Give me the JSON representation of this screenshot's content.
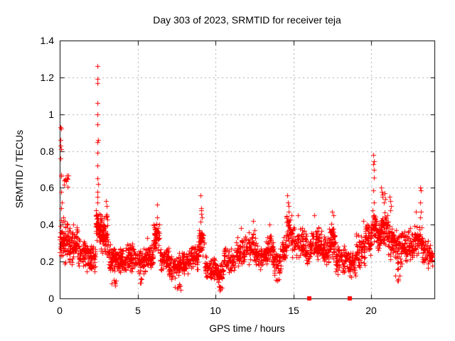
{
  "chart_data": {
    "type": "scatter",
    "title": "Day 303 of 2023, SRMTID for receiver teja",
    "xlabel": "GPS time / hours",
    "ylabel": "SRMTID / TECUs",
    "xlim": [
      0,
      24.05
    ],
    "ylim": [
      0,
      1.4
    ],
    "xticks": [
      0,
      5,
      10,
      15,
      20
    ],
    "yticks": [
      0,
      0.2,
      0.4,
      0.6,
      0.8,
      1,
      1.2,
      1.4
    ],
    "xtick_labels": [
      "0",
      "5",
      "10",
      "15",
      "20"
    ],
    "ytick_labels": [
      "0",
      "0.2",
      "0.4",
      "0.6",
      "0.8",
      "1",
      "1.2",
      "1.4"
    ],
    "legend": "none",
    "grid": {
      "show": true,
      "color": "#a8a8a8",
      "dash": [
        2,
        4
      ]
    },
    "axis_color": "#000000",
    "marker": {
      "glyph": "+",
      "color": "#ff0000",
      "size": 7
    },
    "axis_square_markers": {
      "color": "#ff0000",
      "size": 6,
      "y": 0,
      "x_hours": [
        16.0,
        18.6
      ]
    },
    "notable_points": [
      [
        0.05,
        0.93
      ],
      [
        0.07,
        0.92
      ],
      [
        0.06,
        0.86
      ],
      [
        0.05,
        0.83
      ],
      [
        0.08,
        0.81
      ],
      [
        0.05,
        0.76
      ],
      [
        0.1,
        0.58
      ],
      [
        0.12,
        0.52
      ],
      [
        0.08,
        0.49
      ],
      [
        2.43,
        1.26
      ],
      [
        2.44,
        1.19
      ],
      [
        2.42,
        1.17
      ],
      [
        2.43,
        1.06
      ],
      [
        2.44,
        1.0
      ],
      [
        2.43,
        0.945
      ],
      [
        2.45,
        0.86
      ],
      [
        2.42,
        0.85
      ],
      [
        2.43,
        0.79
      ],
      [
        2.44,
        0.72
      ],
      [
        2.43,
        0.65
      ],
      [
        2.45,
        0.62
      ],
      [
        2.42,
        0.58
      ],
      [
        2.44,
        0.55
      ],
      [
        2.43,
        0.52
      ],
      [
        2.98,
        0.53
      ],
      [
        3.02,
        0.5
      ],
      [
        3.0,
        0.455
      ],
      [
        3.05,
        0.43
      ],
      [
        6.24,
        0.51
      ],
      [
        6.27,
        0.44
      ],
      [
        9.02,
        0.56
      ],
      [
        9.07,
        0.49
      ],
      [
        9.1,
        0.48
      ],
      [
        9.08,
        0.46
      ],
      [
        9.13,
        0.44
      ],
      [
        11.62,
        0.38
      ],
      [
        12.42,
        0.42
      ],
      [
        13.48,
        0.4
      ],
      [
        14.62,
        0.56
      ],
      [
        14.66,
        0.52
      ],
      [
        14.7,
        0.5
      ],
      [
        14.68,
        0.47
      ],
      [
        15.3,
        0.45
      ],
      [
        16.35,
        0.45
      ],
      [
        17.5,
        0.47
      ],
      [
        17.55,
        0.45
      ],
      [
        19.48,
        0.42
      ],
      [
        20.13,
        0.78
      ],
      [
        20.16,
        0.745
      ],
      [
        20.14,
        0.73
      ],
      [
        20.15,
        0.7
      ],
      [
        20.17,
        0.655
      ],
      [
        20.14,
        0.585
      ],
      [
        20.16,
        0.52
      ],
      [
        20.65,
        0.6
      ],
      [
        20.68,
        0.58
      ],
      [
        20.72,
        0.565
      ],
      [
        20.7,
        0.55
      ],
      [
        20.85,
        0.57
      ],
      [
        20.88,
        0.54
      ],
      [
        20.83,
        0.52
      ],
      [
        21.18,
        0.55
      ],
      [
        21.22,
        0.53
      ],
      [
        21.25,
        0.5
      ],
      [
        21.2,
        0.48
      ],
      [
        22.85,
        0.47
      ],
      [
        23.14,
        0.6
      ],
      [
        23.17,
        0.585
      ],
      [
        23.15,
        0.52
      ],
      [
        23.18,
        0.47
      ],
      [
        23.16,
        0.44
      ]
    ],
    "band_segments": {
      "format": [
        "x0_hours",
        "x1_hours",
        "count",
        "y_low",
        "y_high"
      ],
      "rows": [
        [
          0.0,
          0.12,
          18,
          0.16,
          0.45
        ],
        [
          0.05,
          0.55,
          12,
          0.6,
          0.69
        ],
        [
          0.12,
          0.6,
          60,
          0.18,
          0.45
        ],
        [
          0.6,
          1.2,
          70,
          0.17,
          0.42
        ],
        [
          1.2,
          1.8,
          62,
          0.14,
          0.33
        ],
        [
          1.8,
          2.3,
          55,
          0.13,
          0.3
        ],
        [
          2.3,
          2.62,
          55,
          0.3,
          0.5
        ],
        [
          2.62,
          3.1,
          60,
          0.22,
          0.46
        ],
        [
          3.1,
          3.55,
          50,
          0.13,
          0.31
        ],
        [
          3.3,
          3.6,
          6,
          0.06,
          0.11
        ],
        [
          3.55,
          4.2,
          65,
          0.12,
          0.28
        ],
        [
          4.2,
          4.9,
          68,
          0.13,
          0.31
        ],
        [
          4.9,
          5.6,
          62,
          0.13,
          0.28
        ],
        [
          5.05,
          5.25,
          4,
          0.08,
          0.12
        ],
        [
          5.6,
          6.0,
          45,
          0.16,
          0.33
        ],
        [
          6.0,
          6.4,
          45,
          0.24,
          0.42
        ],
        [
          6.4,
          7.0,
          58,
          0.14,
          0.28
        ],
        [
          7.0,
          7.65,
          58,
          0.1,
          0.24
        ],
        [
          7.4,
          7.9,
          7,
          0.04,
          0.09
        ],
        [
          7.65,
          8.25,
          58,
          0.12,
          0.26
        ],
        [
          8.25,
          8.9,
          62,
          0.14,
          0.3
        ],
        [
          8.9,
          9.3,
          45,
          0.22,
          0.42
        ],
        [
          9.3,
          10.0,
          62,
          0.1,
          0.24
        ],
        [
          10.0,
          10.5,
          48,
          0.08,
          0.22
        ],
        [
          10.1,
          10.45,
          6,
          0.03,
          0.07
        ],
        [
          10.5,
          11.2,
          62,
          0.13,
          0.28
        ],
        [
          11.2,
          11.9,
          62,
          0.16,
          0.34
        ],
        [
          11.9,
          12.6,
          62,
          0.18,
          0.37
        ],
        [
          12.6,
          13.2,
          56,
          0.15,
          0.3
        ],
        [
          13.2,
          13.7,
          52,
          0.17,
          0.36
        ],
        [
          13.7,
          14.2,
          50,
          0.12,
          0.28
        ],
        [
          13.85,
          14.1,
          4,
          0.08,
          0.11
        ],
        [
          14.2,
          14.55,
          38,
          0.18,
          0.34
        ],
        [
          14.55,
          14.9,
          42,
          0.27,
          0.47
        ],
        [
          14.9,
          15.6,
          62,
          0.21,
          0.4
        ],
        [
          15.6,
          16.2,
          58,
          0.18,
          0.38
        ],
        [
          16.2,
          16.8,
          58,
          0.2,
          0.41
        ],
        [
          16.8,
          17.3,
          52,
          0.16,
          0.34
        ],
        [
          17.3,
          17.7,
          48,
          0.19,
          0.42
        ],
        [
          17.7,
          18.4,
          60,
          0.13,
          0.3
        ],
        [
          18.4,
          19.0,
          55,
          0.1,
          0.27
        ],
        [
          19.0,
          19.6,
          55,
          0.16,
          0.36
        ],
        [
          19.6,
          20.05,
          50,
          0.22,
          0.45
        ],
        [
          20.05,
          20.32,
          32,
          0.3,
          0.5
        ],
        [
          20.32,
          20.6,
          38,
          0.24,
          0.44
        ],
        [
          20.6,
          21.1,
          58,
          0.27,
          0.5
        ],
        [
          21.1,
          21.45,
          42,
          0.21,
          0.42
        ],
        [
          21.45,
          22.0,
          55,
          0.15,
          0.38
        ],
        [
          21.55,
          21.8,
          5,
          0.09,
          0.13
        ],
        [
          22.0,
          22.5,
          52,
          0.18,
          0.38
        ],
        [
          22.5,
          23.0,
          52,
          0.21,
          0.43
        ],
        [
          23.0,
          23.28,
          30,
          0.24,
          0.4
        ],
        [
          23.28,
          23.95,
          58,
          0.16,
          0.32
        ]
      ]
    }
  }
}
